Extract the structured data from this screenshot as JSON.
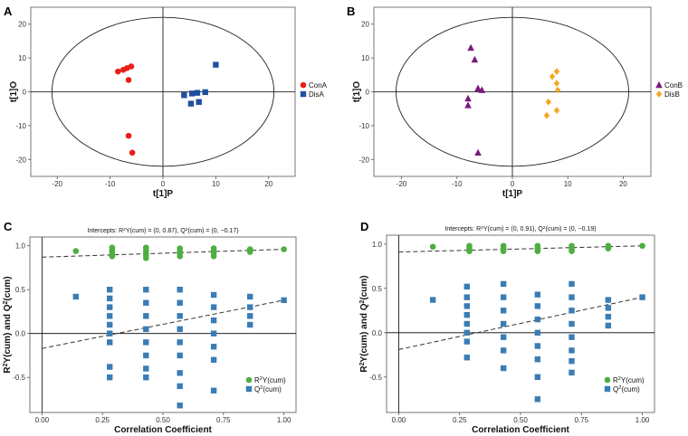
{
  "chart_data": [
    {
      "panel": "A",
      "type": "scatter",
      "xlabel": "t[1]P",
      "ylabel": "t[1]O",
      "xlim": [
        -25,
        25
      ],
      "ylim": [
        -25,
        25
      ],
      "xticks": [
        -20,
        -10,
        0,
        10,
        20
      ],
      "yticks": [
        20,
        10,
        0,
        -10,
        -20
      ],
      "ellipse": {
        "rx": 21,
        "ry": 22
      },
      "legend_position": "right",
      "series": [
        {
          "name": "ConA",
          "marker": "circle",
          "color": "#e8201c",
          "points": [
            [
              -8.5,
              6
            ],
            [
              -7.5,
              6.5
            ],
            [
              -6.8,
              7
            ],
            [
              -6,
              7.5
            ],
            [
              -6.5,
              3.5
            ],
            [
              -6.5,
              -13
            ],
            [
              -5.8,
              -18
            ]
          ]
        },
        {
          "name": "DisA",
          "marker": "square",
          "color": "#1f4fa0",
          "points": [
            [
              4,
              -1
            ],
            [
              5.5,
              -0.5
            ],
            [
              6.5,
              -0.3
            ],
            [
              8,
              -0.1
            ],
            [
              5.3,
              -3.5
            ],
            [
              6.8,
              -3
            ],
            [
              10,
              8
            ]
          ]
        }
      ]
    },
    {
      "panel": "B",
      "type": "scatter",
      "xlabel": "t[1]P",
      "ylabel": "t[1]O",
      "xlim": [
        -25,
        25
      ],
      "ylim": [
        -25,
        25
      ],
      "xticks": [
        -20,
        -10,
        0,
        10,
        20
      ],
      "yticks": [
        20,
        10,
        0,
        -10,
        -20
      ],
      "ellipse": {
        "rx": 21,
        "ry": 22
      },
      "legend_position": "right",
      "series": [
        {
          "name": "ConB",
          "marker": "triangle",
          "color": "#7b1a7e",
          "points": [
            [
              -7.5,
              13
            ],
            [
              -6.8,
              9.5
            ],
            [
              -6.2,
              1
            ],
            [
              -5.5,
              0.5
            ],
            [
              -8,
              -2
            ],
            [
              -8,
              -4
            ],
            [
              -6.2,
              -18
            ]
          ]
        },
        {
          "name": "DisB",
          "marker": "diamond",
          "color": "#f5a623",
          "points": [
            [
              8,
              6
            ],
            [
              7.2,
              4.5
            ],
            [
              8,
              2.5
            ],
            [
              8.2,
              0.5
            ],
            [
              6.5,
              -3
            ],
            [
              8,
              -5.5
            ],
            [
              6.2,
              -7
            ]
          ]
        }
      ]
    },
    {
      "panel": "C",
      "type": "scatter",
      "title": "Intercepts: R2Y(cum) = (0, 0.87), Q2(cum) = (0, −0.17)",
      "xlabel": "Correlation Coefficient",
      "ylabel": "R2Y(cum) and Q2(cum)",
      "xlim": [
        -0.05,
        1.05
      ],
      "ylim": [
        -0.9,
        1.1
      ],
      "xticks": [
        0.0,
        0.25,
        0.5,
        0.75,
        1.0
      ],
      "yticks": [
        1.0,
        0.5,
        0.0,
        -0.5
      ],
      "legend_position": "bottom-right",
      "intercepts": {
        "r2y": 0.87,
        "q2": -0.17
      },
      "series": [
        {
          "name": "R2Y(cum)",
          "marker": "circle",
          "color": "#4caf3f",
          "points": [
            [
              0.14,
              0.94
            ],
            [
              0.29,
              0.88
            ],
            [
              0.29,
              0.9
            ],
            [
              0.29,
              0.93
            ],
            [
              0.29,
              0.95
            ],
            [
              0.29,
              0.98
            ],
            [
              0.43,
              0.86
            ],
            [
              0.43,
              0.89
            ],
            [
              0.43,
              0.92
            ],
            [
              0.43,
              0.95
            ],
            [
              0.43,
              0.98
            ],
            [
              0.57,
              0.88
            ],
            [
              0.57,
              0.91
            ],
            [
              0.57,
              0.94
            ],
            [
              0.57,
              0.97
            ],
            [
              0.71,
              0.88
            ],
            [
              0.71,
              0.91
            ],
            [
              0.71,
              0.94
            ],
            [
              0.71,
              0.97
            ],
            [
              0.86,
              0.93
            ],
            [
              0.86,
              0.96
            ],
            [
              1.0,
              0.96
            ]
          ]
        },
        {
          "name": "Q2(cum)",
          "marker": "square",
          "color": "#3a7db5",
          "points": [
            [
              0.14,
              0.42
            ],
            [
              0.28,
              0.5
            ],
            [
              0.28,
              0.4
            ],
            [
              0.28,
              0.3
            ],
            [
              0.28,
              0.2
            ],
            [
              0.28,
              0.1
            ],
            [
              0.28,
              0.0
            ],
            [
              0.28,
              -0.1
            ],
            [
              0.28,
              -0.38
            ],
            [
              0.28,
              -0.5
            ],
            [
              0.43,
              0.5
            ],
            [
              0.43,
              0.35
            ],
            [
              0.43,
              0.2
            ],
            [
              0.43,
              0.05
            ],
            [
              0.43,
              -0.1
            ],
            [
              0.43,
              -0.25
            ],
            [
              0.43,
              -0.4
            ],
            [
              0.43,
              -0.5
            ],
            [
              0.57,
              0.5
            ],
            [
              0.57,
              0.35
            ],
            [
              0.57,
              0.2
            ],
            [
              0.57,
              0.05
            ],
            [
              0.57,
              -0.1
            ],
            [
              0.57,
              -0.25
            ],
            [
              0.57,
              -0.45
            ],
            [
              0.57,
              -0.6
            ],
            [
              0.57,
              -0.82
            ],
            [
              0.71,
              0.44
            ],
            [
              0.71,
              0.3
            ],
            [
              0.71,
              0.15
            ],
            [
              0.71,
              0.0
            ],
            [
              0.71,
              -0.15
            ],
            [
              0.71,
              -0.3
            ],
            [
              0.71,
              -0.65
            ],
            [
              0.86,
              0.42
            ],
            [
              0.86,
              0.3
            ],
            [
              0.86,
              0.2
            ],
            [
              0.86,
              0.1
            ],
            [
              1.0,
              0.38
            ]
          ]
        }
      ]
    },
    {
      "panel": "D",
      "type": "scatter",
      "title": "Intercepts: R2Y(cum) = (0, 0.91), Q2(cum) = (0, −0.19)",
      "xlabel": "Correlation Coefficient",
      "ylabel": "R2Y(cum) and Q2(cum)",
      "xlim": [
        -0.05,
        1.05
      ],
      "ylim": [
        -0.9,
        1.1
      ],
      "xticks": [
        0.0,
        0.25,
        0.5,
        0.75,
        1.0
      ],
      "yticks": [
        1.0,
        0.5,
        0.0,
        -0.5
      ],
      "legend_position": "bottom-right",
      "intercepts": {
        "r2y": 0.91,
        "q2": -0.19
      },
      "series": [
        {
          "name": "R2Y(cum)",
          "marker": "circle",
          "color": "#4caf3f",
          "points": [
            [
              0.14,
              0.97
            ],
            [
              0.29,
              0.92
            ],
            [
              0.29,
              0.95
            ],
            [
              0.29,
              0.98
            ],
            [
              0.43,
              0.92
            ],
            [
              0.43,
              0.95
            ],
            [
              0.43,
              0.98
            ],
            [
              0.57,
              0.92
            ],
            [
              0.57,
              0.95
            ],
            [
              0.57,
              0.98
            ],
            [
              0.71,
              0.92
            ],
            [
              0.71,
              0.95
            ],
            [
              0.71,
              0.98
            ],
            [
              0.86,
              0.95
            ],
            [
              0.86,
              0.98
            ],
            [
              1.0,
              0.98
            ]
          ]
        },
        {
          "name": "Q2(cum)",
          "marker": "square",
          "color": "#3a7db5",
          "points": [
            [
              0.14,
              0.37
            ],
            [
              0.28,
              0.52
            ],
            [
              0.28,
              0.4
            ],
            [
              0.28,
              0.3
            ],
            [
              0.28,
              0.2
            ],
            [
              0.28,
              0.1
            ],
            [
              0.28,
              0.0
            ],
            [
              0.28,
              -0.1
            ],
            [
              0.28,
              -0.28
            ],
            [
              0.43,
              0.55
            ],
            [
              0.43,
              0.4
            ],
            [
              0.43,
              0.25
            ],
            [
              0.43,
              0.1
            ],
            [
              0.43,
              -0.05
            ],
            [
              0.43,
              -0.2
            ],
            [
              0.43,
              -0.4
            ],
            [
              0.57,
              0.43
            ],
            [
              0.57,
              0.3
            ],
            [
              0.57,
              0.15
            ],
            [
              0.57,
              0.0
            ],
            [
              0.57,
              -0.15
            ],
            [
              0.57,
              -0.3
            ],
            [
              0.57,
              -0.5
            ],
            [
              0.57,
              -0.75
            ],
            [
              0.71,
              0.55
            ],
            [
              0.71,
              0.4
            ],
            [
              0.71,
              0.25
            ],
            [
              0.71,
              0.1
            ],
            [
              0.71,
              -0.05
            ],
            [
              0.71,
              -0.2
            ],
            [
              0.71,
              -0.32
            ],
            [
              0.71,
              -0.45
            ],
            [
              0.86,
              0.37
            ],
            [
              0.86,
              0.28
            ],
            [
              0.86,
              0.18
            ],
            [
              0.86,
              0.08
            ],
            [
              1.0,
              0.4
            ]
          ]
        }
      ]
    }
  ]
}
